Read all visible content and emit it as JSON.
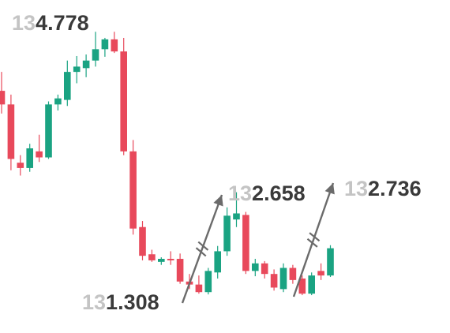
{
  "chart_data": {
    "type": "candlestick",
    "title": "",
    "xlabel": "",
    "ylabel": "",
    "grid": false,
    "colors": {
      "up": "#1aa382",
      "down": "#e8495b",
      "wick_up": "#1aa382",
      "wick_down": "#e8495b",
      "arrow": "#6b6b6b"
    },
    "ylim": [
      130.8,
      135.2
    ],
    "candles": [
      {
        "o": 134.0,
        "h": 134.25,
        "l": 133.7,
        "c": 133.82
      },
      {
        "o": 133.82,
        "h": 133.95,
        "l": 132.95,
        "c": 133.1
      },
      {
        "o": 133.05,
        "h": 133.15,
        "l": 132.88,
        "c": 132.98
      },
      {
        "o": 132.98,
        "h": 133.3,
        "l": 132.93,
        "c": 133.24
      },
      {
        "o": 133.2,
        "h": 133.42,
        "l": 133.06,
        "c": 133.12
      },
      {
        "o": 133.12,
        "h": 133.86,
        "l": 133.1,
        "c": 133.82
      },
      {
        "o": 133.82,
        "h": 133.95,
        "l": 133.74,
        "c": 133.9
      },
      {
        "o": 133.88,
        "h": 134.4,
        "l": 133.8,
        "c": 134.25
      },
      {
        "o": 134.25,
        "h": 134.46,
        "l": 134.1,
        "c": 134.32
      },
      {
        "o": 134.3,
        "h": 134.48,
        "l": 134.18,
        "c": 134.4
      },
      {
        "o": 134.4,
        "h": 134.78,
        "l": 134.32,
        "c": 134.55
      },
      {
        "o": 134.55,
        "h": 134.7,
        "l": 134.45,
        "c": 134.68
      },
      {
        "o": 134.68,
        "h": 134.78,
        "l": 134.5,
        "c": 134.52
      },
      {
        "o": 134.52,
        "h": 134.7,
        "l": 133.15,
        "c": 133.2
      },
      {
        "o": 133.2,
        "h": 133.35,
        "l": 132.1,
        "c": 132.18
      },
      {
        "o": 132.2,
        "h": 132.28,
        "l": 131.76,
        "c": 131.82
      },
      {
        "o": 131.84,
        "h": 131.9,
        "l": 131.74,
        "c": 131.76
      },
      {
        "o": 131.74,
        "h": 131.8,
        "l": 131.7,
        "c": 131.78
      },
      {
        "o": 131.78,
        "h": 131.88,
        "l": 131.7,
        "c": 131.76
      },
      {
        "o": 131.78,
        "h": 131.85,
        "l": 131.45,
        "c": 131.48
      },
      {
        "o": 131.48,
        "h": 131.58,
        "l": 131.38,
        "c": 131.44
      },
      {
        "o": 131.44,
        "h": 131.56,
        "l": 131.32,
        "c": 131.34
      },
      {
        "o": 131.34,
        "h": 131.66,
        "l": 131.31,
        "c": 131.62
      },
      {
        "o": 131.6,
        "h": 131.95,
        "l": 131.52,
        "c": 131.88
      },
      {
        "o": 131.88,
        "h": 132.46,
        "l": 131.82,
        "c": 132.35
      },
      {
        "o": 132.3,
        "h": 132.66,
        "l": 132.2,
        "c": 132.38
      },
      {
        "o": 132.36,
        "h": 132.4,
        "l": 131.58,
        "c": 131.62
      },
      {
        "o": 131.62,
        "h": 131.78,
        "l": 131.55,
        "c": 131.72
      },
      {
        "o": 131.72,
        "h": 131.75,
        "l": 131.52,
        "c": 131.58
      },
      {
        "o": 131.58,
        "h": 131.64,
        "l": 131.36,
        "c": 131.4
      },
      {
        "o": 131.38,
        "h": 131.72,
        "l": 131.34,
        "c": 131.66
      },
      {
        "o": 131.66,
        "h": 131.7,
        "l": 131.45,
        "c": 131.5
      },
      {
        "o": 131.52,
        "h": 131.56,
        "l": 131.3,
        "c": 131.32
      },
      {
        "o": 131.32,
        "h": 131.6,
        "l": 131.3,
        "c": 131.56
      },
      {
        "o": 131.62,
        "h": 131.72,
        "l": 131.5,
        "c": 131.56
      },
      {
        "o": 131.56,
        "h": 131.96,
        "l": 131.54,
        "c": 131.92
      }
    ],
    "annotations": [
      {
        "id": "high",
        "value": "134.778",
        "dim": "13",
        "rest": "4.778"
      },
      {
        "id": "low",
        "value": "131.308",
        "dim": "13",
        "rest": "1.308"
      },
      {
        "id": "target-1",
        "value": "132.658",
        "dim": "13",
        "rest": "2.658"
      },
      {
        "id": "target-2",
        "value": "132.736",
        "dim": "13",
        "rest": "2.736"
      }
    ]
  }
}
